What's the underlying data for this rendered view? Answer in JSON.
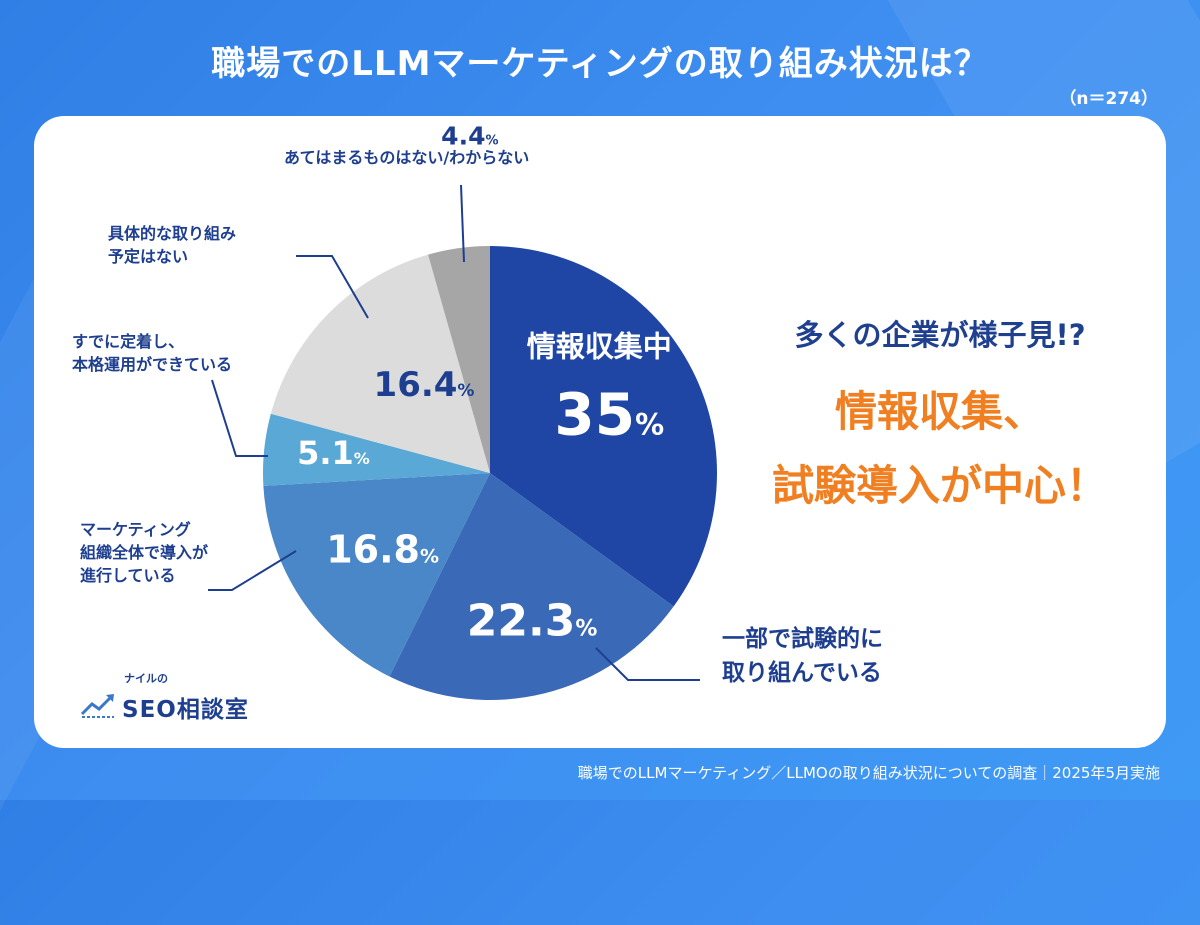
{
  "title": "職場でのLLMマーケティングの取り組み状況は？",
  "sample_size": "（n＝274）",
  "chart_data": {
    "type": "pie",
    "title": "職場でのLLMマーケティングの取り組み状況は？",
    "unit": "%",
    "slices": [
      {
        "label": "情報収集中",
        "label_lines": [
          "情報収集中"
        ],
        "value": 35,
        "display": "35",
        "color": "#1f46a5",
        "text_color": "#ffffff"
      },
      {
        "label": "一部で試験的に取り組んでいる",
        "label_lines": [
          "一部で試験的に",
          "取り組んでいる"
        ],
        "value": 22.3,
        "display": "22.3",
        "color": "#3a69b7",
        "text_color": "#ffffff"
      },
      {
        "label": "マーケティング組織全体で導入が進行している",
        "label_lines": [
          "マーケティング",
          "組織全体で導入が",
          "進行している"
        ],
        "value": 16.8,
        "display": "16.8",
        "color": "#4a87c8",
        "text_color": "#ffffff"
      },
      {
        "label": "すでに定着し、本格運用ができている",
        "label_lines": [
          "すでに定着し、",
          "本格運用ができている"
        ],
        "value": 5.1,
        "display": "5.1",
        "color": "#5aa8d6",
        "text_color": "#ffffff"
      },
      {
        "label": "具体的な取り組み予定はない",
        "label_lines": [
          "具体的な取り組み",
          "予定はない"
        ],
        "value": 16.4,
        "display": "16.4",
        "color": "#dcdcdc",
        "text_color": "#1e3f8f"
      },
      {
        "label": "あてはまるものはない/わからない",
        "label_lines": [
          "あてはまるものはない/わからない"
        ],
        "value": 4.4,
        "display": "4.4",
        "color": "#a6a6a6",
        "text_color": "#1e3f8f"
      }
    ]
  },
  "tagline": {
    "line1": "多くの企業が様子見!?",
    "line2": "情報収集、",
    "line3": "試験導入が中心！"
  },
  "logo": {
    "small": "ナイルの",
    "main": "SEO相談室"
  },
  "footer": "職場でのLLMマーケティング／LLMOの取り組み状況についての調査｜2025年5月実施",
  "colors": {
    "background": "#3a8aee",
    "navy": "#1e3f8f",
    "orange": "#f07f22"
  }
}
